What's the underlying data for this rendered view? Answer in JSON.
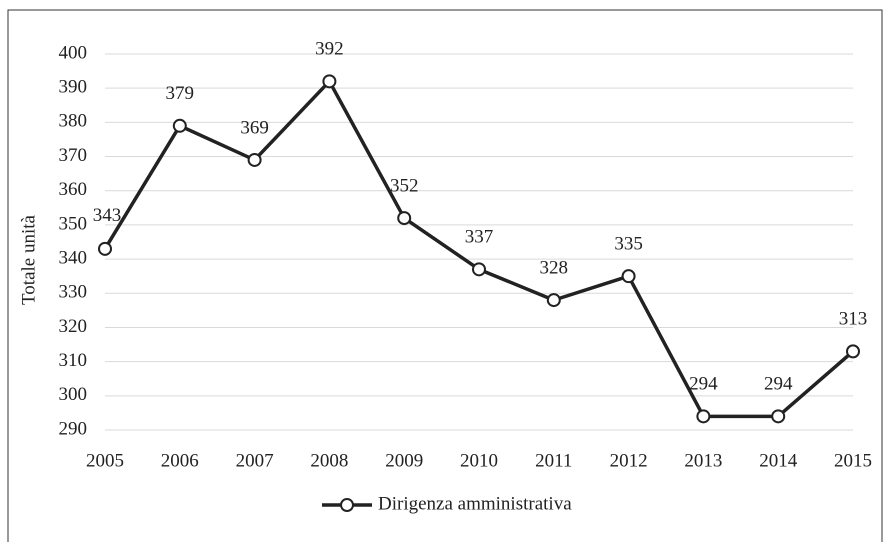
{
  "chart_data": {
    "type": "line",
    "y_label": "Totale unità",
    "categories": [
      "2005",
      "2006",
      "2007",
      "2008",
      "2009",
      "2010",
      "2011",
      "2012",
      "2013",
      "2014",
      "2015"
    ],
    "series": [
      {
        "name": "Dirigenza amministrativa",
        "color": "#222222",
        "values": [
          343,
          379,
          369,
          392,
          352,
          337,
          328,
          335,
          294,
          294,
          313
        ]
      }
    ],
    "ylim": [
      290,
      400
    ],
    "yticks": [
      290,
      300,
      310,
      320,
      330,
      340,
      350,
      360,
      370,
      380,
      390,
      400
    ],
    "grid": true,
    "legend": "bottom"
  }
}
